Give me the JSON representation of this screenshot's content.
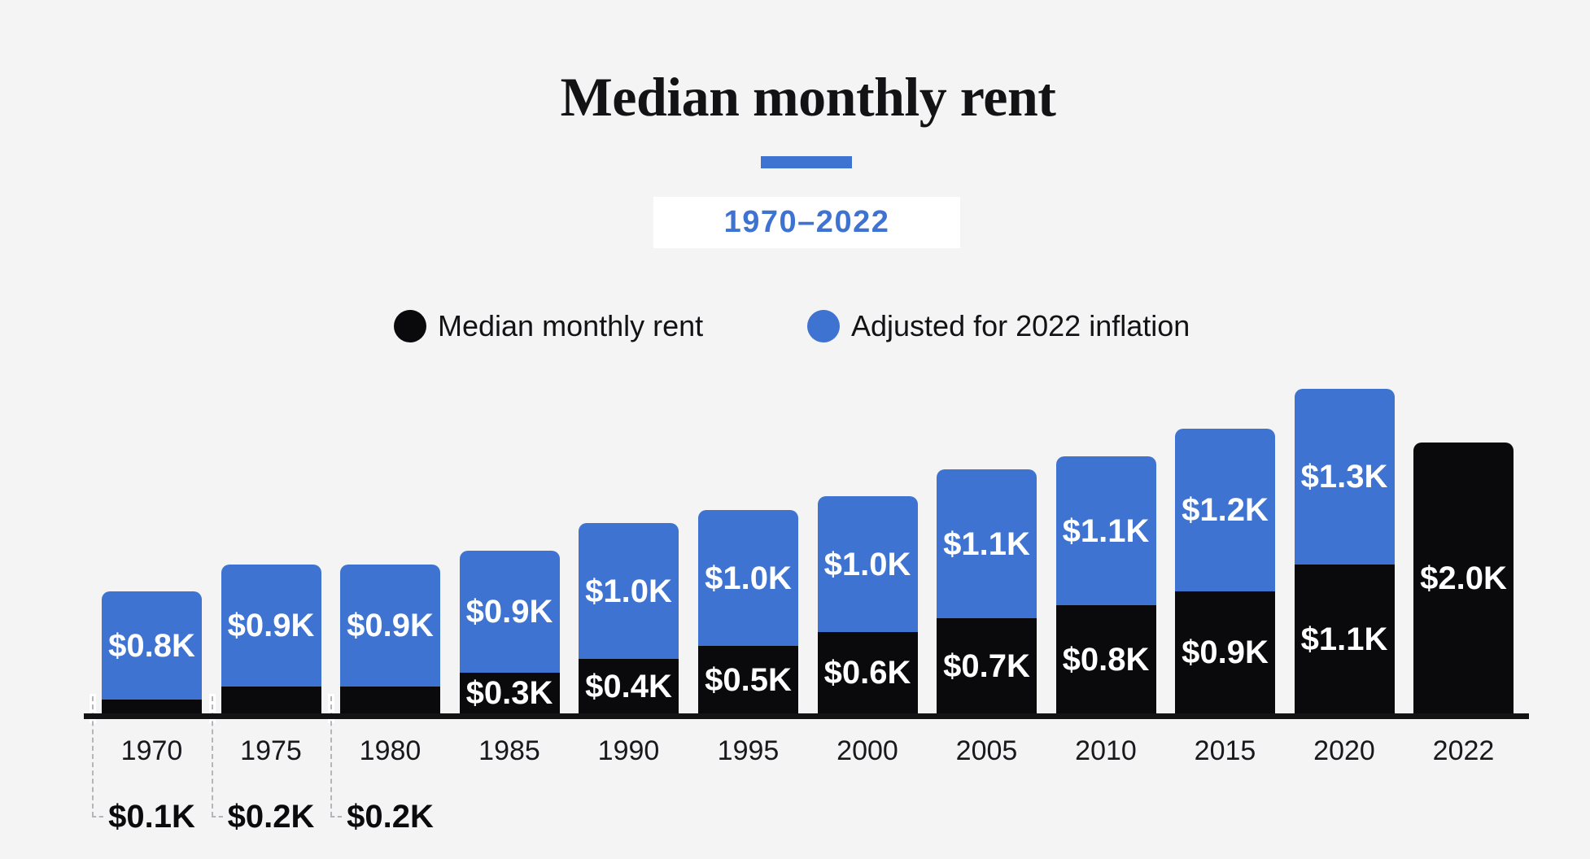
{
  "page": {
    "background_color": "#f4f4f5",
    "accent_blue": "#3e73d1",
    "bar_black": "#0a0a0c"
  },
  "header": {
    "title": "Median monthly rent",
    "subtitle": "1970–2022"
  },
  "legend": [
    {
      "label": "Median monthly rent",
      "swatch": "black-dot",
      "color": "#0a0a0c"
    },
    {
      "label": "Adjusted for 2022 inflation",
      "swatch": "blue-dot",
      "color": "#3e73d1"
    }
  ],
  "chart_data": {
    "type": "bar",
    "stacked": true,
    "title": "Median monthly rent",
    "subtitle": "1970–2022",
    "categories": [
      "1970",
      "1975",
      "1980",
      "1985",
      "1990",
      "1995",
      "2000",
      "2005",
      "2010",
      "2015",
      "2020",
      "2022"
    ],
    "series": [
      {
        "name": "Median monthly rent",
        "color": "#0a0a0c",
        "values_usd_k": [
          0.1,
          0.2,
          0.2,
          0.3,
          0.4,
          0.5,
          0.6,
          0.7,
          0.8,
          0.9,
          1.1,
          2.0
        ],
        "labels": [
          "$0.1K",
          "$0.2K",
          "$0.2K",
          "$0.3K",
          "$0.4K",
          "$0.5K",
          "$0.6K",
          "$0.7K",
          "$0.8K",
          "$0.9K",
          "$1.1K",
          "$2.0K"
        ],
        "label_placement": [
          "below-axis",
          "below-axis",
          "below-axis",
          "inside",
          "inside",
          "inside",
          "inside",
          "inside",
          "inside",
          "inside",
          "inside",
          "inside"
        ]
      },
      {
        "name": "Adjusted for 2022 inflation",
        "color": "#3e73d1",
        "values_usd_k": [
          0.8,
          0.9,
          0.9,
          0.9,
          1.0,
          1.0,
          1.0,
          1.1,
          1.1,
          1.2,
          1.3,
          null
        ],
        "labels": [
          "$0.8K",
          "$0.9K",
          "$0.9K",
          "$0.9K",
          "$1.0K",
          "$1.0K",
          "$1.0K",
          "$1.1K",
          "$1.1K",
          "$1.2K",
          "$1.3K",
          null
        ]
      }
    ],
    "ylim_usd_k": [
      0,
      2.4
    ],
    "xlabel": "",
    "ylabel": "",
    "grid": false,
    "y_axis_shown": false,
    "legend_position": "top-center",
    "notes": "Bar label text is shown inside each segment; nominal values for 1970-1980 are annotated below the x-axis with dashed leader lines."
  }
}
